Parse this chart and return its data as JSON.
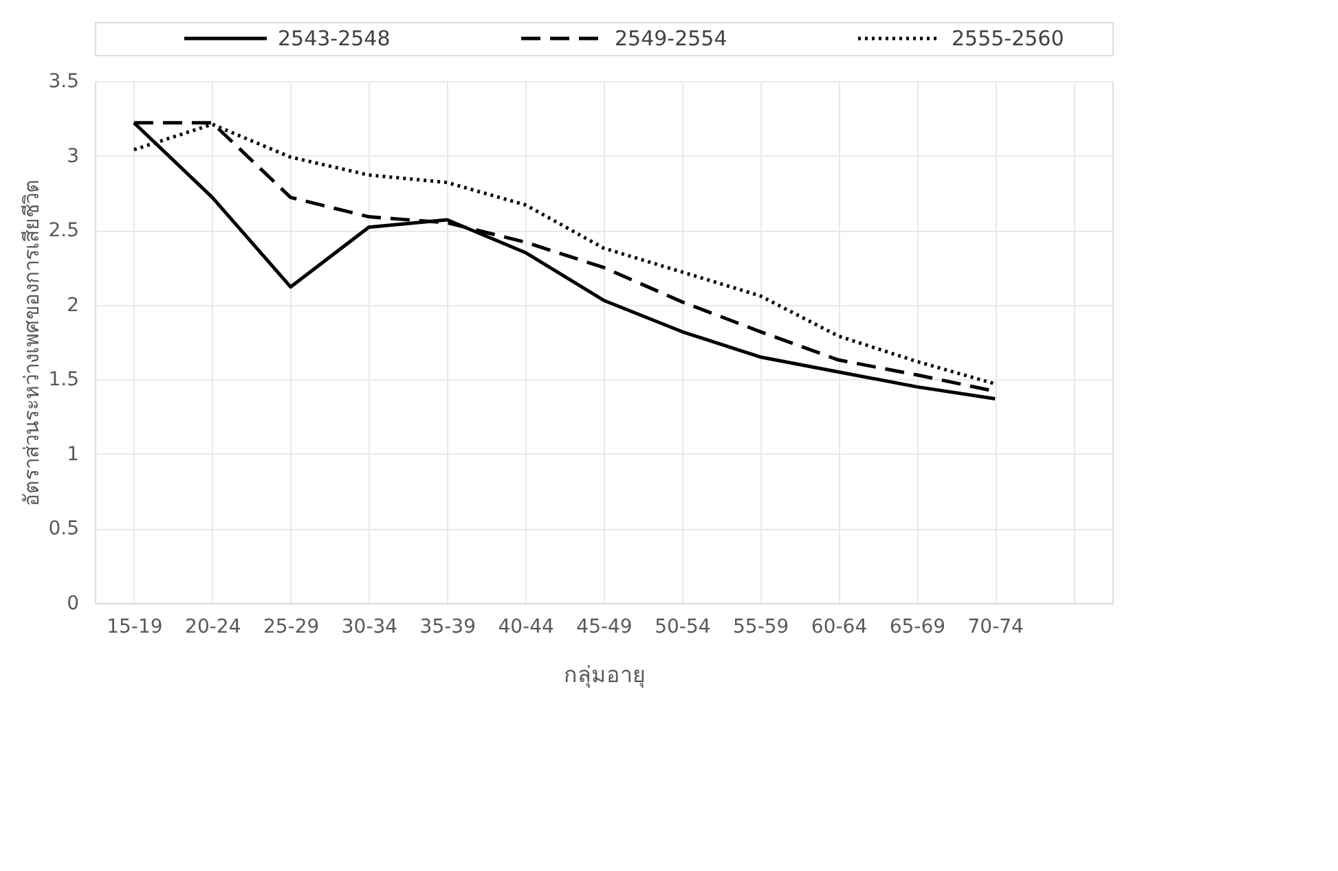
{
  "chart_data": {
    "type": "line",
    "xlabel": "กลุ่มอายุ",
    "ylabel": "อัตราส่วนระหว่างเพศของการเสียชีวิต",
    "categories": [
      "15-19",
      "20-24",
      "25-29",
      "30-34",
      "35-39",
      "40-44",
      "45-49",
      "50-54",
      "55-59",
      "60-64",
      "65-69",
      "70-74",
      null
    ],
    "series": [
      {
        "name": "2543-2548",
        "color": "#000000",
        "line_style": "solid",
        "values": [
          3.22,
          2.72,
          2.12,
          2.52,
          2.57,
          2.35,
          2.03,
          1.82,
          1.65,
          1.55,
          1.45,
          1.37,
          null
        ]
      },
      {
        "name": "2549-2554",
        "color": "#000000",
        "line_style": "dashed",
        "values": [
          3.22,
          3.22,
          2.72,
          2.59,
          2.55,
          2.42,
          2.25,
          2.02,
          1.82,
          1.63,
          1.53,
          1.42,
          null
        ]
      },
      {
        "name": "2555-2560",
        "color": "#000000",
        "line_style": "dotted",
        "values": [
          3.04,
          3.21,
          2.99,
          2.87,
          2.82,
          2.67,
          2.38,
          2.22,
          2.06,
          1.79,
          1.62,
          1.47,
          null
        ]
      }
    ],
    "ylim": [
      0,
      3.5
    ],
    "yticks": [
      0,
      0.5,
      1,
      1.5,
      2,
      2.5,
      3,
      3.5
    ],
    "grid": true,
    "legend": "top"
  }
}
